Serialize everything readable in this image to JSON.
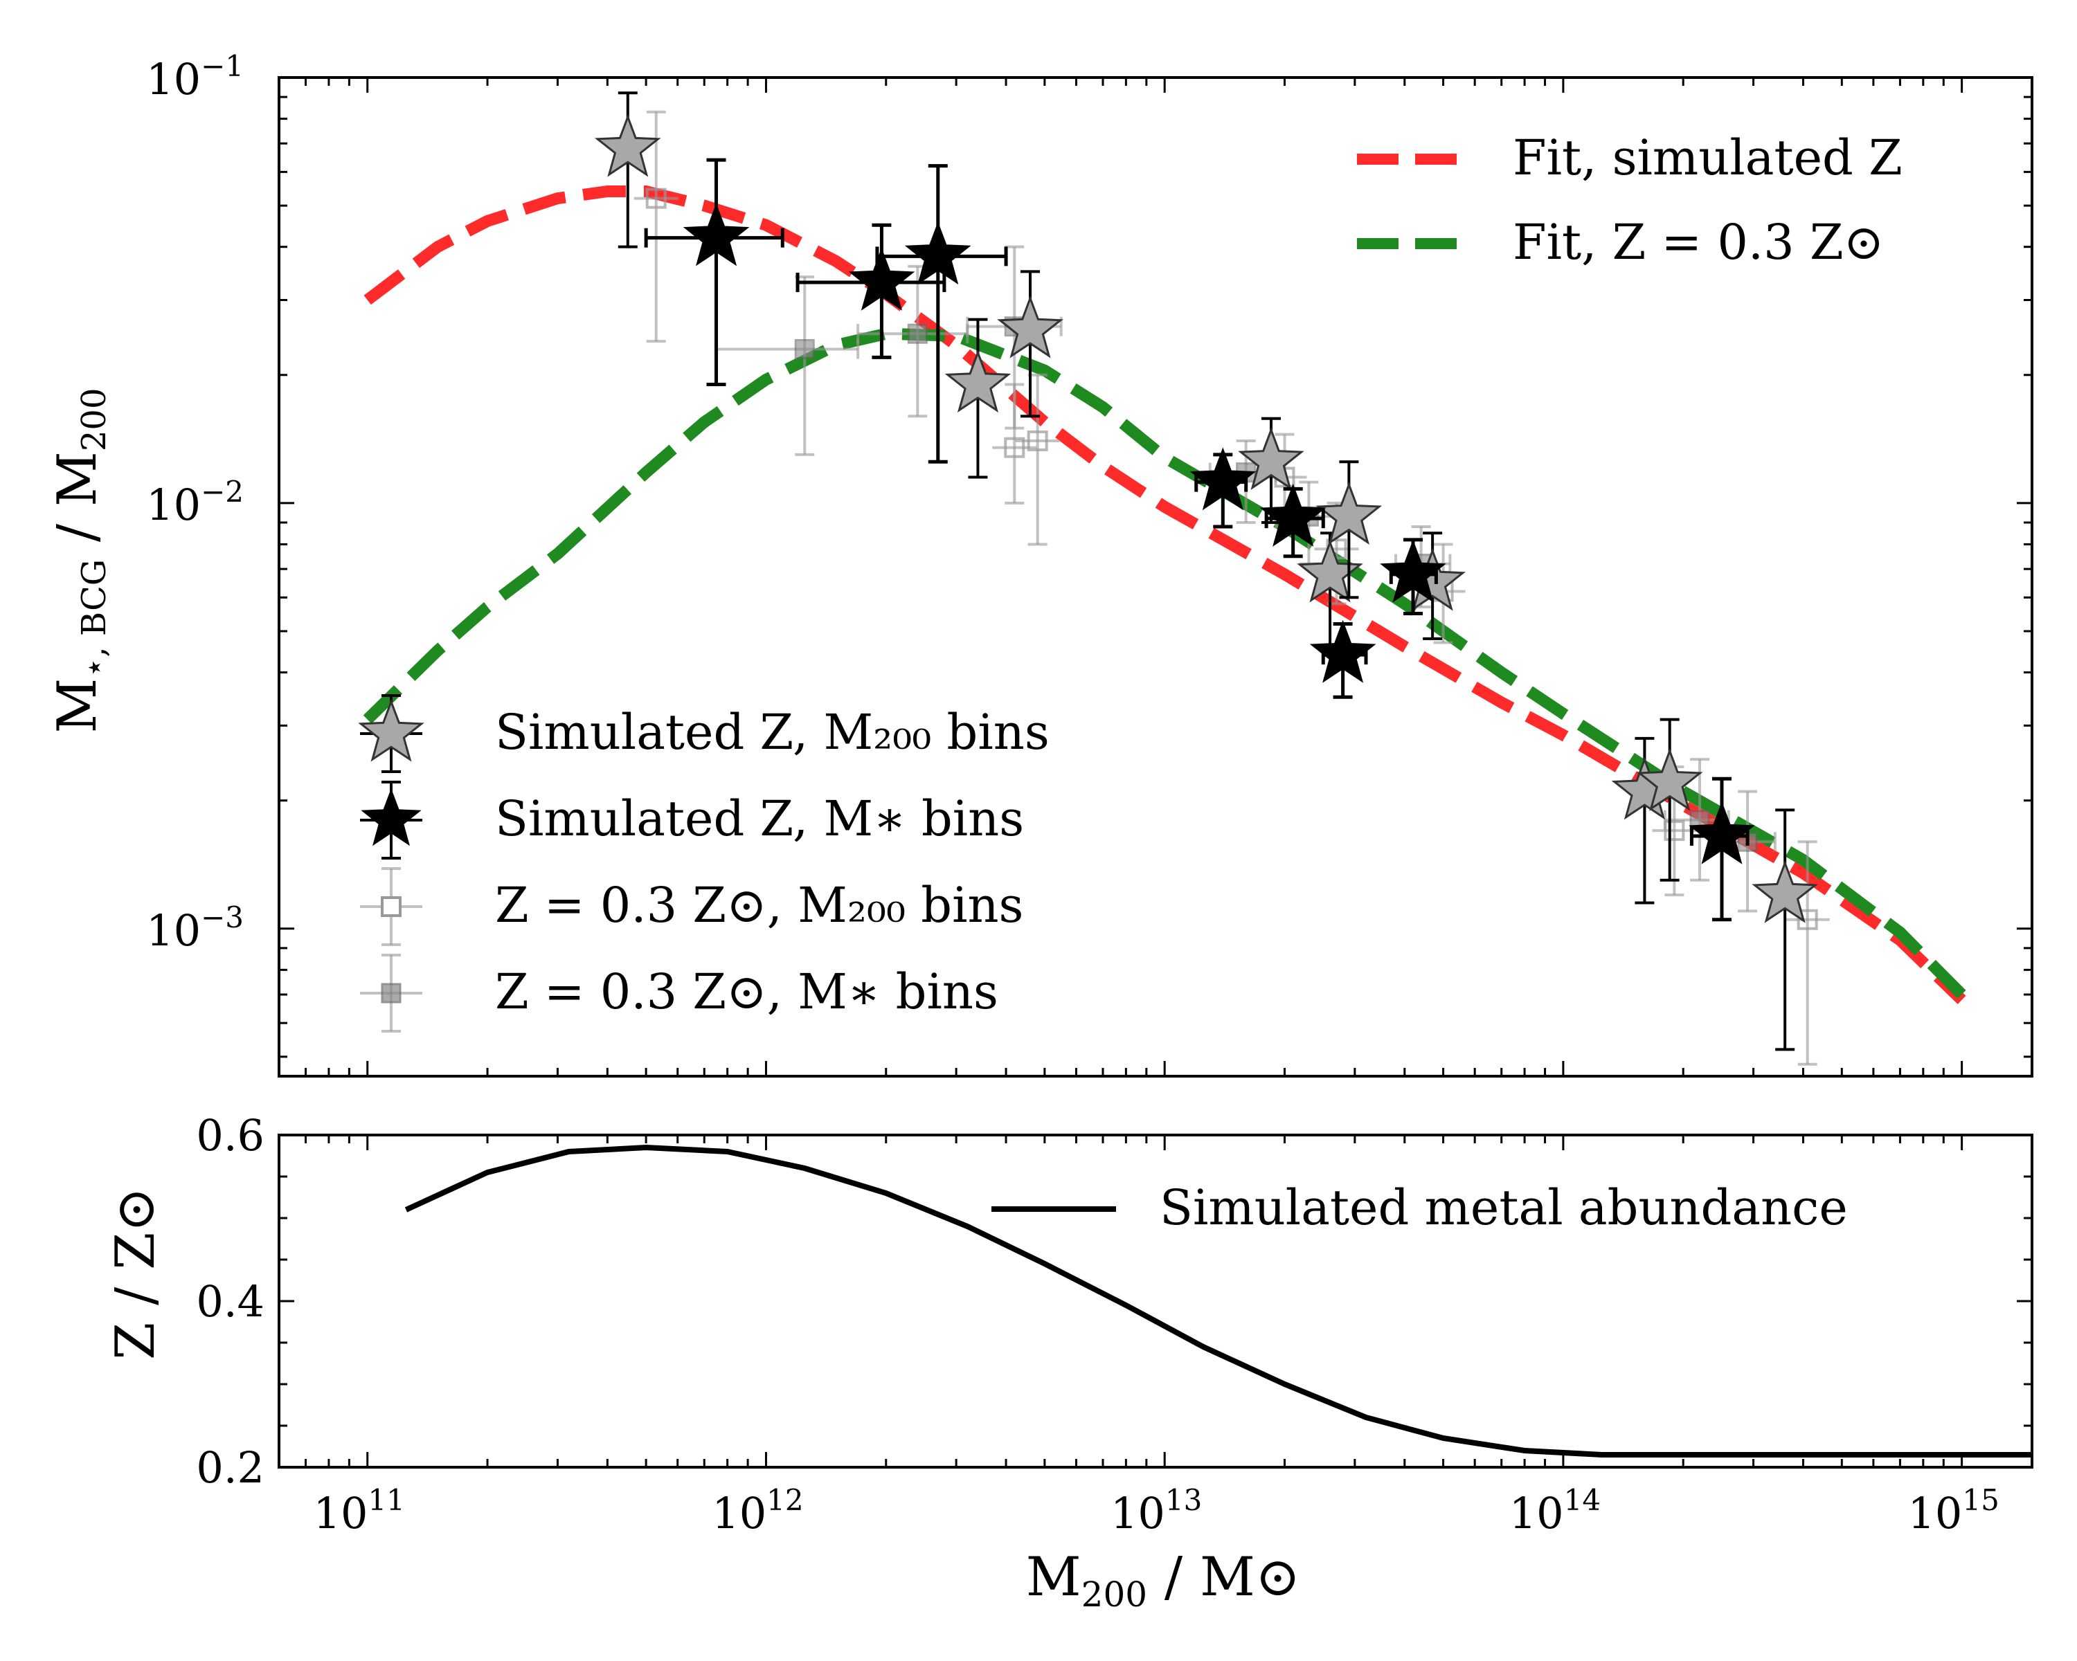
{
  "chart_data": [
    {
      "type": "scatter",
      "panel": "top",
      "xscale": "log",
      "yscale": "log",
      "xlim": [
        60000000000.0,
        1500000000000000.0
      ],
      "ylim": [
        0.00045,
        0.1
      ],
      "ylabel": {
        "main": "M",
        "sub": "⋆, BCG",
        "sep": " / ",
        "main2": "M",
        "sub2": "200"
      },
      "ticks": {
        "x": [
          100000000000.0,
          1000000000000.0,
          10000000000000.0,
          100000000000000.0,
          1000000000000000.0
        ],
        "y": [
          {
            "value": 0.1,
            "base": "10",
            "exp": "−1"
          },
          {
            "value": 0.01,
            "base": "10",
            "exp": "−2"
          },
          {
            "value": 0.001,
            "base": "10",
            "exp": "−3"
          }
        ]
      },
      "series": [
        {
          "name": "Fit, simulated Z",
          "kind": "line",
          "color": "#ff2a2a",
          "style": "dashed",
          "x": [
            100000000000.0,
            150000000000.0,
            200000000000.0,
            300000000000.0,
            400000000000.0,
            500000000000.0,
            700000000000.0,
            1000000000000.0,
            1500000000000.0,
            2000000000000.0,
            3000000000000.0,
            5000000000000.0,
            7000000000000.0,
            10000000000000.0,
            20000000000000.0,
            40000000000000.0,
            70000000000000.0,
            100000000000000.0,
            200000000000000.0,
            400000000000000.0,
            700000000000000.0,
            1000000000000000.0
          ],
          "y": [
            0.03,
            0.04,
            0.046,
            0.052,
            0.054,
            0.054,
            0.05,
            0.045,
            0.037,
            0.031,
            0.0235,
            0.0155,
            0.0122,
            0.0098,
            0.0068,
            0.0046,
            0.0034,
            0.00285,
            0.00195,
            0.00135,
            0.00094,
            0.00068
          ]
        },
        {
          "name": "Fit, Z = 0.3 Z⊙",
          "kind": "line",
          "color": "#1f8a1f",
          "style": "dashed",
          "x": [
            100000000000.0,
            150000000000.0,
            200000000000.0,
            300000000000.0,
            500000000000.0,
            700000000000.0,
            1000000000000.0,
            1500000000000.0,
            2000000000000.0,
            3000000000000.0,
            5000000000000.0,
            7000000000000.0,
            10000000000000.0,
            20000000000000.0,
            40000000000000.0,
            70000000000000.0,
            100000000000000.0,
            200000000000000.0,
            400000000000000.0,
            700000000000000.0,
            1000000000000000.0
          ],
          "y": [
            0.0031,
            0.0045,
            0.0057,
            0.0076,
            0.0118,
            0.0155,
            0.0195,
            0.0235,
            0.025,
            0.0247,
            0.0205,
            0.0168,
            0.0128,
            0.0088,
            0.0058,
            0.004,
            0.0032,
            0.0021,
            0.00145,
            0.00098,
            0.0007
          ]
        },
        {
          "name": "Simulated Z, M₂₀₀ bins",
          "kind": "star",
          "fill": "#a8a8a8",
          "points": [
            {
              "x": 450000000000.0,
              "y": 0.068,
              "ylo": 0.04,
              "yhi": 0.092
            },
            {
              "x": 3400000000000.0,
              "y": 0.019,
              "ylo": 0.0115,
              "yhi": 0.027
            },
            {
              "x": 4600000000000.0,
              "y": 0.0255,
              "ylo": 0.016,
              "yhi": 0.035
            },
            {
              "x": 18500000000000.0,
              "y": 0.0125,
              "ylo": 0.009,
              "yhi": 0.0158
            },
            {
              "x": 26000000000000.0,
              "y": 0.0068,
              "ylo": 0.0045,
              "yhi": 0.0085
            },
            {
              "x": 29000000000000.0,
              "y": 0.0093,
              "ylo": 0.006,
              "yhi": 0.0125
            },
            {
              "x": 47000000000000.0,
              "y": 0.0065,
              "ylo": 0.0048,
              "yhi": 0.0085
            },
            {
              "x": 160000000000000.0,
              "y": 0.0021,
              "ylo": 0.00115,
              "yhi": 0.0028
            },
            {
              "x": 185000000000000.0,
              "y": 0.0022,
              "ylo": 0.0013,
              "yhi": 0.0031
            },
            {
              "x": 360000000000000.0,
              "y": 0.0012,
              "ylo": 0.00052,
              "yhi": 0.0019
            }
          ]
        },
        {
          "name": "Simulated Z, M∗ bins",
          "kind": "star",
          "fill": "#000000",
          "points": [
            {
              "x": 750000000000.0,
              "y": 0.042,
              "ylo": 0.019,
              "yhi": 0.064,
              "xlo": 500000000000.0,
              "xhi": 1100000000000.0
            },
            {
              "x": 1950000000000.0,
              "y": 0.033,
              "ylo": 0.022,
              "yhi": 0.045,
              "xlo": 1200000000000.0,
              "xhi": 2800000000000.0
            },
            {
              "x": 2700000000000.0,
              "y": 0.038,
              "ylo": 0.0125,
              "yhi": 0.062,
              "xlo": 1900000000000.0,
              "xhi": 4000000000000.0
            },
            {
              "x": 14000000000000.0,
              "y": 0.0112,
              "ylo": 0.0088,
              "yhi": 0.013,
              "xlo": 12000000000000.0,
              "xhi": 16000000000000.0
            },
            {
              "x": 21000000000000.0,
              "y": 0.0092,
              "ylo": 0.0075,
              "yhi": 0.0108,
              "xlo": 18000000000000.0,
              "xhi": 25000000000000.0
            },
            {
              "x": 28000000000000.0,
              "y": 0.0044,
              "ylo": 0.0035,
              "yhi": 0.0052,
              "xlo": 25000000000000.0,
              "xhi": 32000000000000.0
            },
            {
              "x": 42000000000000.0,
              "y": 0.0068,
              "ylo": 0.0055,
              "yhi": 0.0082,
              "xlo": 37000000000000.0,
              "xhi": 48000000000000.0
            },
            {
              "x": 250000000000000.0,
              "y": 0.00165,
              "ylo": 0.00105,
              "yhi": 0.00225,
              "xlo": 210000000000000.0,
              "xhi": 290000000000000.0
            }
          ]
        },
        {
          "name": "Z = 0.3 Z⊙, M₂₀₀ bins",
          "kind": "open-square",
          "color": "#999999",
          "points": [
            {
              "x": 530000000000.0,
              "y": 0.052,
              "ylo": 0.024,
              "yhi": 0.083
            },
            {
              "x": 4200000000000.0,
              "y": 0.0135,
              "ylo": 0.01,
              "yhi": 0.019
            },
            {
              "x": 4800000000000.0,
              "y": 0.014,
              "ylo": 0.008,
              "yhi": 0.02
            },
            {
              "x": 20000000000000.0,
              "y": 0.0115,
              "ylo": 0.0088,
              "yhi": 0.0145
            },
            {
              "x": 27000000000000.0,
              "y": 0.0078,
              "ylo": 0.0058,
              "yhi": 0.01
            },
            {
              "x": 50000000000000.0,
              "y": 0.0062,
              "ylo": 0.0047,
              "yhi": 0.008
            },
            {
              "x": 190000000000000.0,
              "y": 0.0017,
              "ylo": 0.0012,
              "yhi": 0.0024
            },
            {
              "x": 410000000000000.0,
              "y": 0.00105,
              "ylo": 0.00048,
              "yhi": 0.0016
            }
          ]
        },
        {
          "name": "Z = 0.3 Z⊙, M∗ bins",
          "kind": "filled-square",
          "color": "#888888",
          "points": [
            {
              "x": 1250000000000.0,
              "y": 0.023,
              "ylo": 0.013,
              "yhi": 0.034,
              "xlo": 750000000000.0,
              "xhi": 1700000000000.0
            },
            {
              "x": 2400000000000.0,
              "y": 0.025,
              "ylo": 0.016,
              "yhi": 0.036,
              "xlo": 1700000000000.0,
              "xhi": 3200000000000.0
            },
            {
              "x": 4200000000000.0,
              "y": 0.026,
              "ylo": 0.015,
              "yhi": 0.04,
              "xlo": 3200000000000.0,
              "xhi": 5500000000000.0
            },
            {
              "x": 16000000000000.0,
              "y": 0.0118,
              "ylo": 0.009,
              "yhi": 0.014,
              "xlo": 13000000000000.0,
              "xhi": 19000000000000.0
            },
            {
              "x": 23000000000000.0,
              "y": 0.0093,
              "ylo": 0.0072,
              "yhi": 0.0112,
              "xlo": 19000000000000.0,
              "xhi": 27000000000000.0
            },
            {
              "x": 44000000000000.0,
              "y": 0.0072,
              "ylo": 0.0057,
              "yhi": 0.0088,
              "xlo": 38000000000000.0,
              "xhi": 52000000000000.0
            },
            {
              "x": 220000000000000.0,
              "y": 0.0018,
              "ylo": 0.0013,
              "yhi": 0.0025,
              "xlo": 180000000000000.0,
              "xhi": 260000000000000.0
            },
            {
              "x": 290000000000000.0,
              "y": 0.0016,
              "ylo": 0.0011,
              "yhi": 0.0021,
              "xlo": 240000000000000.0,
              "xhi": 340000000000000.0
            }
          ]
        }
      ],
      "legends": [
        {
          "position": "upper-right",
          "entries": [
            "Fit, simulated Z",
            "Fit, Z = 0.3 Z⊙"
          ]
        },
        {
          "position": "lower-left",
          "entries": [
            "Simulated Z, M₂₀₀ bins",
            "Simulated Z, M∗ bins",
            "Z = 0.3 Z⊙, M₂₀₀ bins",
            "Z = 0.3 Z⊙, M∗ bins"
          ]
        }
      ]
    },
    {
      "type": "line",
      "panel": "bottom",
      "xscale": "log",
      "xlim": [
        60000000000.0,
        1500000000000000.0
      ],
      "ylim": [
        0.2,
        0.6
      ],
      "ylabel": "Z / Z⊙",
      "xlabel": {
        "main": "M",
        "sub": "200",
        "rest": " / M⊙"
      },
      "yticks": [
        "0.2",
        "0.4",
        "0.6"
      ],
      "xticks": [
        {
          "value": 100000000000.0,
          "base": "10",
          "exp": "11"
        },
        {
          "value": 1000000000000.0,
          "base": "10",
          "exp": "12"
        },
        {
          "value": 10000000000000.0,
          "base": "10",
          "exp": "13"
        },
        {
          "value": 100000000000000.0,
          "base": "10",
          "exp": "14"
        },
        {
          "value": 1000000000000000.0,
          "base": "10",
          "exp": "15"
        }
      ],
      "series": [
        {
          "name": "Simulated metal abundance",
          "color": "#000000",
          "x": [
            125000000000.0,
            200000000000.0,
            320000000000.0,
            500000000000.0,
            800000000000.0,
            1250000000000.0,
            2000000000000.0,
            3200000000000.0,
            5000000000000.0,
            8000000000000.0,
            12500000000000.0,
            20000000000000.0,
            32000000000000.0,
            50000000000000.0,
            80000000000000.0,
            125000000000000.0,
            200000000000000.0,
            400000000000000.0,
            800000000000000.0,
            1500000000000000.0
          ],
          "y": [
            0.51,
            0.555,
            0.58,
            0.585,
            0.58,
            0.56,
            0.53,
            0.49,
            0.445,
            0.395,
            0.345,
            0.3,
            0.26,
            0.235,
            0.22,
            0.215,
            0.215,
            0.215,
            0.215,
            0.215
          ]
        }
      ],
      "legend": {
        "position": "upper-right",
        "entries": [
          "Simulated metal abundance"
        ]
      }
    }
  ]
}
